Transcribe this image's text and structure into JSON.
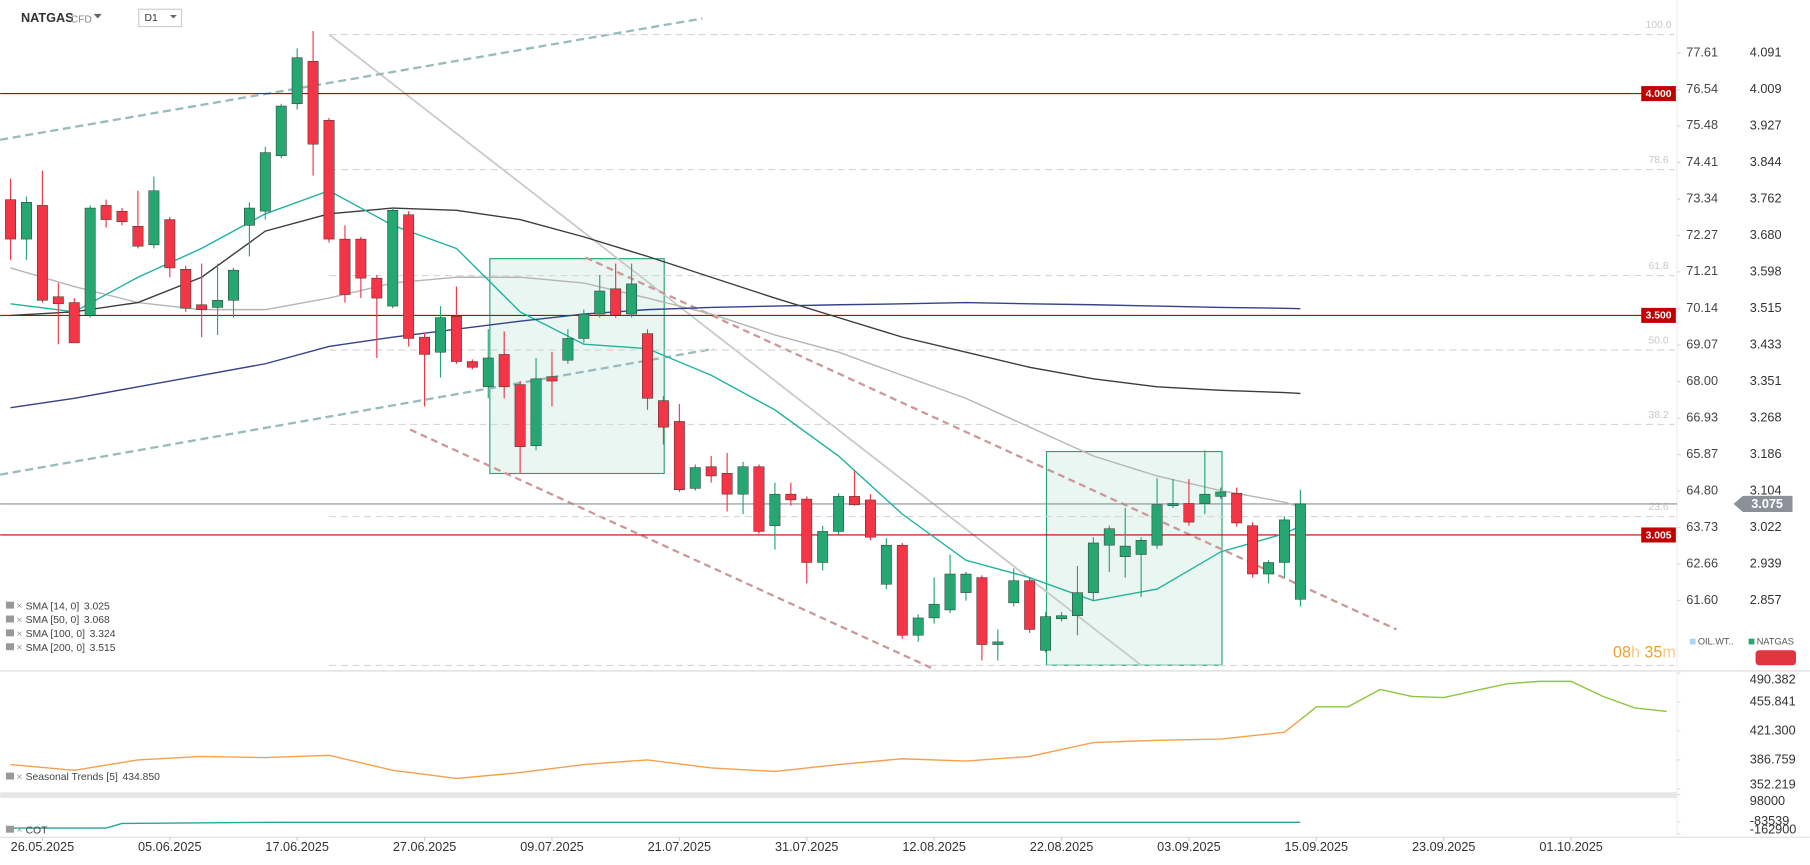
{
  "chart_data": [
    {
      "type": "candlestick",
      "title": "NATGAS",
      "subtitle": "CFD",
      "timeframe": "D1",
      "xlim": [
        0,
        104
      ],
      "xticks": [
        {
          "value": 2,
          "label": "26.05.2025"
        },
        {
          "value": 10,
          "label": "05.06.2025"
        },
        {
          "value": 18,
          "label": "17.06.2025"
        },
        {
          "value": 26,
          "label": "27.06.2025"
        },
        {
          "value": 34,
          "label": "09.07.2025"
        },
        {
          "value": 42,
          "label": "21.07.2025"
        },
        {
          "value": 50,
          "label": "31.07.2025"
        },
        {
          "value": 58,
          "label": "12.08.2025"
        },
        {
          "value": 66,
          "label": "22.08.2025"
        },
        {
          "value": 74,
          "label": "03.09.2025"
        },
        {
          "value": 82,
          "label": "15.09.2025"
        },
        {
          "value": 90,
          "label": "23.09.2025"
        },
        {
          "value": 98,
          "label": "01.10.2025"
        }
      ],
      "ylim": [
        2.701,
        4.211
      ],
      "yticks": [
        4.091,
        4.009,
        3.927,
        3.844,
        3.762,
        {
          "value": 3.68,
          "label": "3.680"
        },
        3.598,
        3.515,
        3.433,
        3.351,
        3.268,
        3.186,
        3.104,
        3.022,
        2.939,
        2.857
      ],
      "y2lim": [
        59.57,
        79.16
      ],
      "y2ticks": [
        77.61,
        76.54,
        75.48,
        74.41,
        73.34,
        72.27,
        71.21,
        70.14,
        69.07,
        {
          "value": 68,
          "label": "68.00"
        },
        66.93,
        65.87,
        {
          "value": 64.8,
          "label": "64.80"
        },
        63.73,
        62.66,
        {
          "value": 61.6,
          "label": "61.60"
        }
      ],
      "candles": {
        "up_color": "#26a671",
        "down_color": "#f23645",
        "open": [
          3.761,
          3.672,
          3.748,
          3.542,
          3.529,
          3.5,
          3.748,
          3.735,
          3.701,
          3.659,
          3.716,
          3.604,
          3.524,
          3.518,
          3.534,
          3.703,
          3.735,
          3.86,
          3.977,
          4.073,
          3.94,
          3.672,
          3.672,
          3.584,
          3.521,
          3.727,
          3.451,
          3.417,
          3.498,
          3.396,
          3.339,
          3.412,
          3.344,
          3.206,
          3.362,
          3.399,
          3.448,
          3.503,
          3.56,
          3.503,
          3.459,
          3.308,
          3.261,
          3.11,
          3.159,
          3.144,
          3.097,
          3.159,
          3.026,
          3.097,
          3.086,
          2.943,
          3.013,
          3.092,
          3.084,
          2.894,
          2.982,
          2.779,
          2.818,
          2.836,
          2.875,
          2.909,
          2.758,
          2.852,
          2.902,
          2.745,
          2.816,
          2.823,
          2.875,
          2.982,
          2.956,
          2.961,
          2.982,
          3.071,
          3.076,
          3.076,
          3.092,
          3.099,
          3.026,
          2.917,
          2.943,
          2.86
        ],
        "high": [
          3.808,
          3.768,
          3.826,
          3.573,
          3.539,
          3.748,
          3.761,
          3.742,
          3.781,
          3.813,
          3.722,
          3.612,
          3.617,
          3.617,
          3.607,
          3.755,
          3.88,
          3.977,
          4.102,
          4.141,
          3.945,
          3.703,
          3.677,
          3.591,
          3.742,
          3.735,
          3.461,
          3.521,
          3.565,
          3.401,
          3.469,
          3.464,
          3.352,
          3.404,
          3.417,
          3.469,
          3.513,
          3.591,
          3.617,
          3.617,
          3.469,
          3.318,
          3.3,
          3.164,
          3.183,
          3.19,
          3.17,
          3.164,
          3.123,
          3.123,
          3.092,
          3.026,
          3.099,
          3.149,
          3.097,
          2.998,
          2.987,
          2.826,
          2.909,
          2.961,
          2.922,
          2.914,
          2.792,
          2.93,
          2.909,
          2.831,
          2.831,
          2.935,
          3.0,
          3.026,
          3.066,
          3.0,
          3.133,
          3.131,
          3.131,
          3.196,
          3.112,
          3.112,
          3.034,
          2.948,
          3.047,
          3.107
        ],
        "low": [
          3.625,
          3.625,
          3.529,
          3.435,
          3.438,
          3.495,
          3.698,
          3.703,
          3.651,
          3.651,
          3.586,
          3.508,
          3.451,
          3.456,
          3.495,
          3.633,
          3.716,
          3.854,
          3.964,
          3.815,
          3.664,
          3.529,
          3.539,
          3.404,
          3.516,
          3.43,
          3.295,
          3.36,
          3.391,
          3.378,
          3.313,
          3.313,
          3.144,
          3.196,
          3.295,
          3.391,
          3.438,
          3.495,
          3.495,
          3.495,
          3.287,
          3.209,
          3.102,
          3.105,
          3.123,
          3.058,
          3.052,
          3.008,
          2.972,
          3.071,
          2.896,
          2.925,
          3.006,
          3.071,
          2.993,
          2.883,
          2.771,
          2.764,
          2.805,
          2.829,
          2.857,
          2.722,
          2.722,
          2.844,
          2.784,
          2.74,
          2.81,
          2.779,
          2.857,
          2.922,
          2.909,
          2.865,
          2.974,
          3.066,
          3.026,
          3.052,
          3.086,
          3.024,
          2.909,
          2.896,
          2.909,
          2.844
        ],
        "close": [
          3.672,
          3.755,
          3.534,
          3.526,
          3.438,
          3.742,
          3.716,
          3.711,
          3.656,
          3.781,
          3.607,
          3.516,
          3.513,
          3.534,
          3.602,
          3.742,
          3.867,
          3.972,
          4.081,
          3.886,
          3.672,
          3.547,
          3.584,
          3.539,
          3.737,
          3.448,
          3.412,
          3.495,
          3.396,
          3.383,
          3.404,
          3.339,
          3.204,
          3.357,
          3.352,
          3.448,
          3.503,
          3.555,
          3.5,
          3.571,
          3.313,
          3.248,
          3.107,
          3.157,
          3.138,
          3.097,
          3.159,
          3.013,
          3.097,
          3.084,
          2.943,
          3.013,
          3.092,
          3.073,
          3.0,
          2.982,
          2.779,
          2.818,
          2.849,
          2.917,
          2.917,
          2.758,
          2.764,
          2.902,
          2.792,
          2.821,
          2.823,
          2.875,
          2.987,
          3.019,
          2.98,
          2.993,
          3.073,
          3.076,
          3.034,
          3.097,
          3.102,
          3.032,
          2.917,
          2.943,
          3.039,
          3.075
        ]
      },
      "series": [
        {
          "name": "SMA [50, 0]",
          "color": "#b5b5b5",
          "x": [
            0,
            4,
            8,
            12,
            16,
            20,
            24,
            28,
            32,
            36,
            40,
            44,
            48,
            52,
            56,
            60,
            64,
            68,
            72,
            76,
            80,
            81
          ],
          "values": [
            3.607,
            3.565,
            3.529,
            3.513,
            3.513,
            3.539,
            3.573,
            3.586,
            3.586,
            3.573,
            3.539,
            3.503,
            3.456,
            3.417,
            3.365,
            3.313,
            3.248,
            3.183,
            3.138,
            3.105,
            3.079,
            3.068
          ]
        },
        {
          "name": "SMA [100, 0]",
          "color": "#3c3c3c",
          "x": [
            0,
            4,
            8,
            12,
            16,
            20,
            24,
            28,
            32,
            36,
            40,
            44,
            48,
            52,
            56,
            60,
            64,
            68,
            72,
            76,
            80,
            81
          ],
          "values": [
            3.5,
            3.508,
            3.529,
            3.586,
            3.69,
            3.729,
            3.742,
            3.737,
            3.716,
            3.677,
            3.633,
            3.586,
            3.539,
            3.495,
            3.451,
            3.417,
            3.383,
            3.357,
            3.339,
            3.331,
            3.326,
            3.324
          ]
        },
        {
          "name": "SMA [14, 0]",
          "color": "#1fb39b",
          "x": [
            0,
            4,
            8,
            12,
            16,
            20,
            24,
            28,
            32,
            36,
            40,
            44,
            48,
            52,
            56,
            60,
            64,
            68,
            72,
            76,
            80,
            81
          ],
          "values": [
            3.526,
            3.508,
            3.586,
            3.651,
            3.729,
            3.781,
            3.703,
            3.651,
            3.508,
            3.435,
            3.425,
            3.365,
            3.287,
            3.183,
            3.052,
            2.948,
            2.909,
            2.857,
            2.883,
            2.967,
            3.008,
            3.025
          ]
        },
        {
          "name": "SMA [200, 0]",
          "color": "#34428c",
          "x": [
            0,
            4,
            8,
            12,
            16,
            20,
            24,
            28,
            32,
            36,
            40,
            44,
            48,
            52,
            56,
            60,
            64,
            68,
            72,
            76,
            80,
            81
          ],
          "values": [
            3.292,
            3.313,
            3.339,
            3.365,
            3.391,
            3.43,
            3.451,
            3.469,
            3.487,
            3.503,
            3.513,
            3.518,
            3.521,
            3.524,
            3.526,
            3.529,
            3.526,
            3.524,
            3.521,
            3.518,
            3.516,
            3.515
          ]
        }
      ],
      "levels": {
        "color": "#c00000",
        "values": [
          4,
          3.5,
          3.005
        ],
        "value_labels": [
          "4.000",
          "3.500",
          "3.005"
        ]
      },
      "last_price": {
        "value": 3.075,
        "label": "3.075",
        "color": "#8a9199"
      },
      "fib": {
        "high": 4.133,
        "low": 2.711,
        "levels": [
          {
            "value": 100,
            "label": "100.0"
          },
          78.6,
          61.8,
          {
            "value": 50,
            "label": "50.0"
          },
          38.2,
          23.6
        ]
      },
      "timer": [
        "08",
        "h ",
        "35",
        "m"
      ],
      "legend_items": [
        {
          "label": "OIL.WT..",
          "color": "#a9d7f2"
        },
        {
          "label": "NATGAS",
          "color": "#26a671"
        }
      ]
    },
    {
      "type": "line",
      "xlim": [
        0,
        104
      ],
      "ylim": [
        352.219,
        490.382
      ],
      "yticks": [
        490.382,
        455.841,
        {
          "value": 421.3,
          "label": "421.300"
        },
        386.759,
        352.219
      ],
      "series": [
        {
          "name": "Seasonal Trends [5]",
          "color": "#f6a04d",
          "legend_value": {
            "value": 434.85,
            "label": "434.850"
          },
          "x": [
            0,
            4,
            8,
            12,
            16,
            20,
            24,
            28,
            32,
            36,
            40,
            44,
            48,
            52,
            56,
            60,
            64,
            68,
            72,
            76,
            80,
            81
          ],
          "values": [
            381.23,
            374.32,
            386.76,
            390.9,
            389.52,
            392.29,
            374.32,
            364.65,
            371.56,
            381.23,
            386.76,
            377.09,
            372.94,
            381.23,
            388.14,
            385.38,
            390.9,
            407.48,
            410.25,
            411.63,
            419.92,
            434.85
          ]
        },
        {
          "color": "#8dc63f",
          "x": [
            81,
            82,
            84,
            86,
            88,
            90,
            92,
            94,
            96,
            98,
            100,
            102,
            104
          ],
          "values": [
            434.85,
            450.31,
            450.31,
            471.04,
            462.75,
            461.37,
            469.66,
            477.95,
            480.71,
            480.71,
            462.75,
            448.93,
            444.79
          ]
        }
      ]
    },
    {
      "type": "line",
      "xlim": [
        0,
        104
      ],
      "ylim": [
        -162900,
        98000
      ],
      "yticks": [
        98000,
        -83539,
        -162900
      ],
      "series": [
        {
          "name": "COT",
          "color": "#26a69a",
          "x": [
            0,
            6,
            7,
            17,
            81
          ],
          "values": [
            -124532,
            -124532,
            -93838,
            -86165,
            -86165
          ]
        }
      ]
    }
  ]
}
